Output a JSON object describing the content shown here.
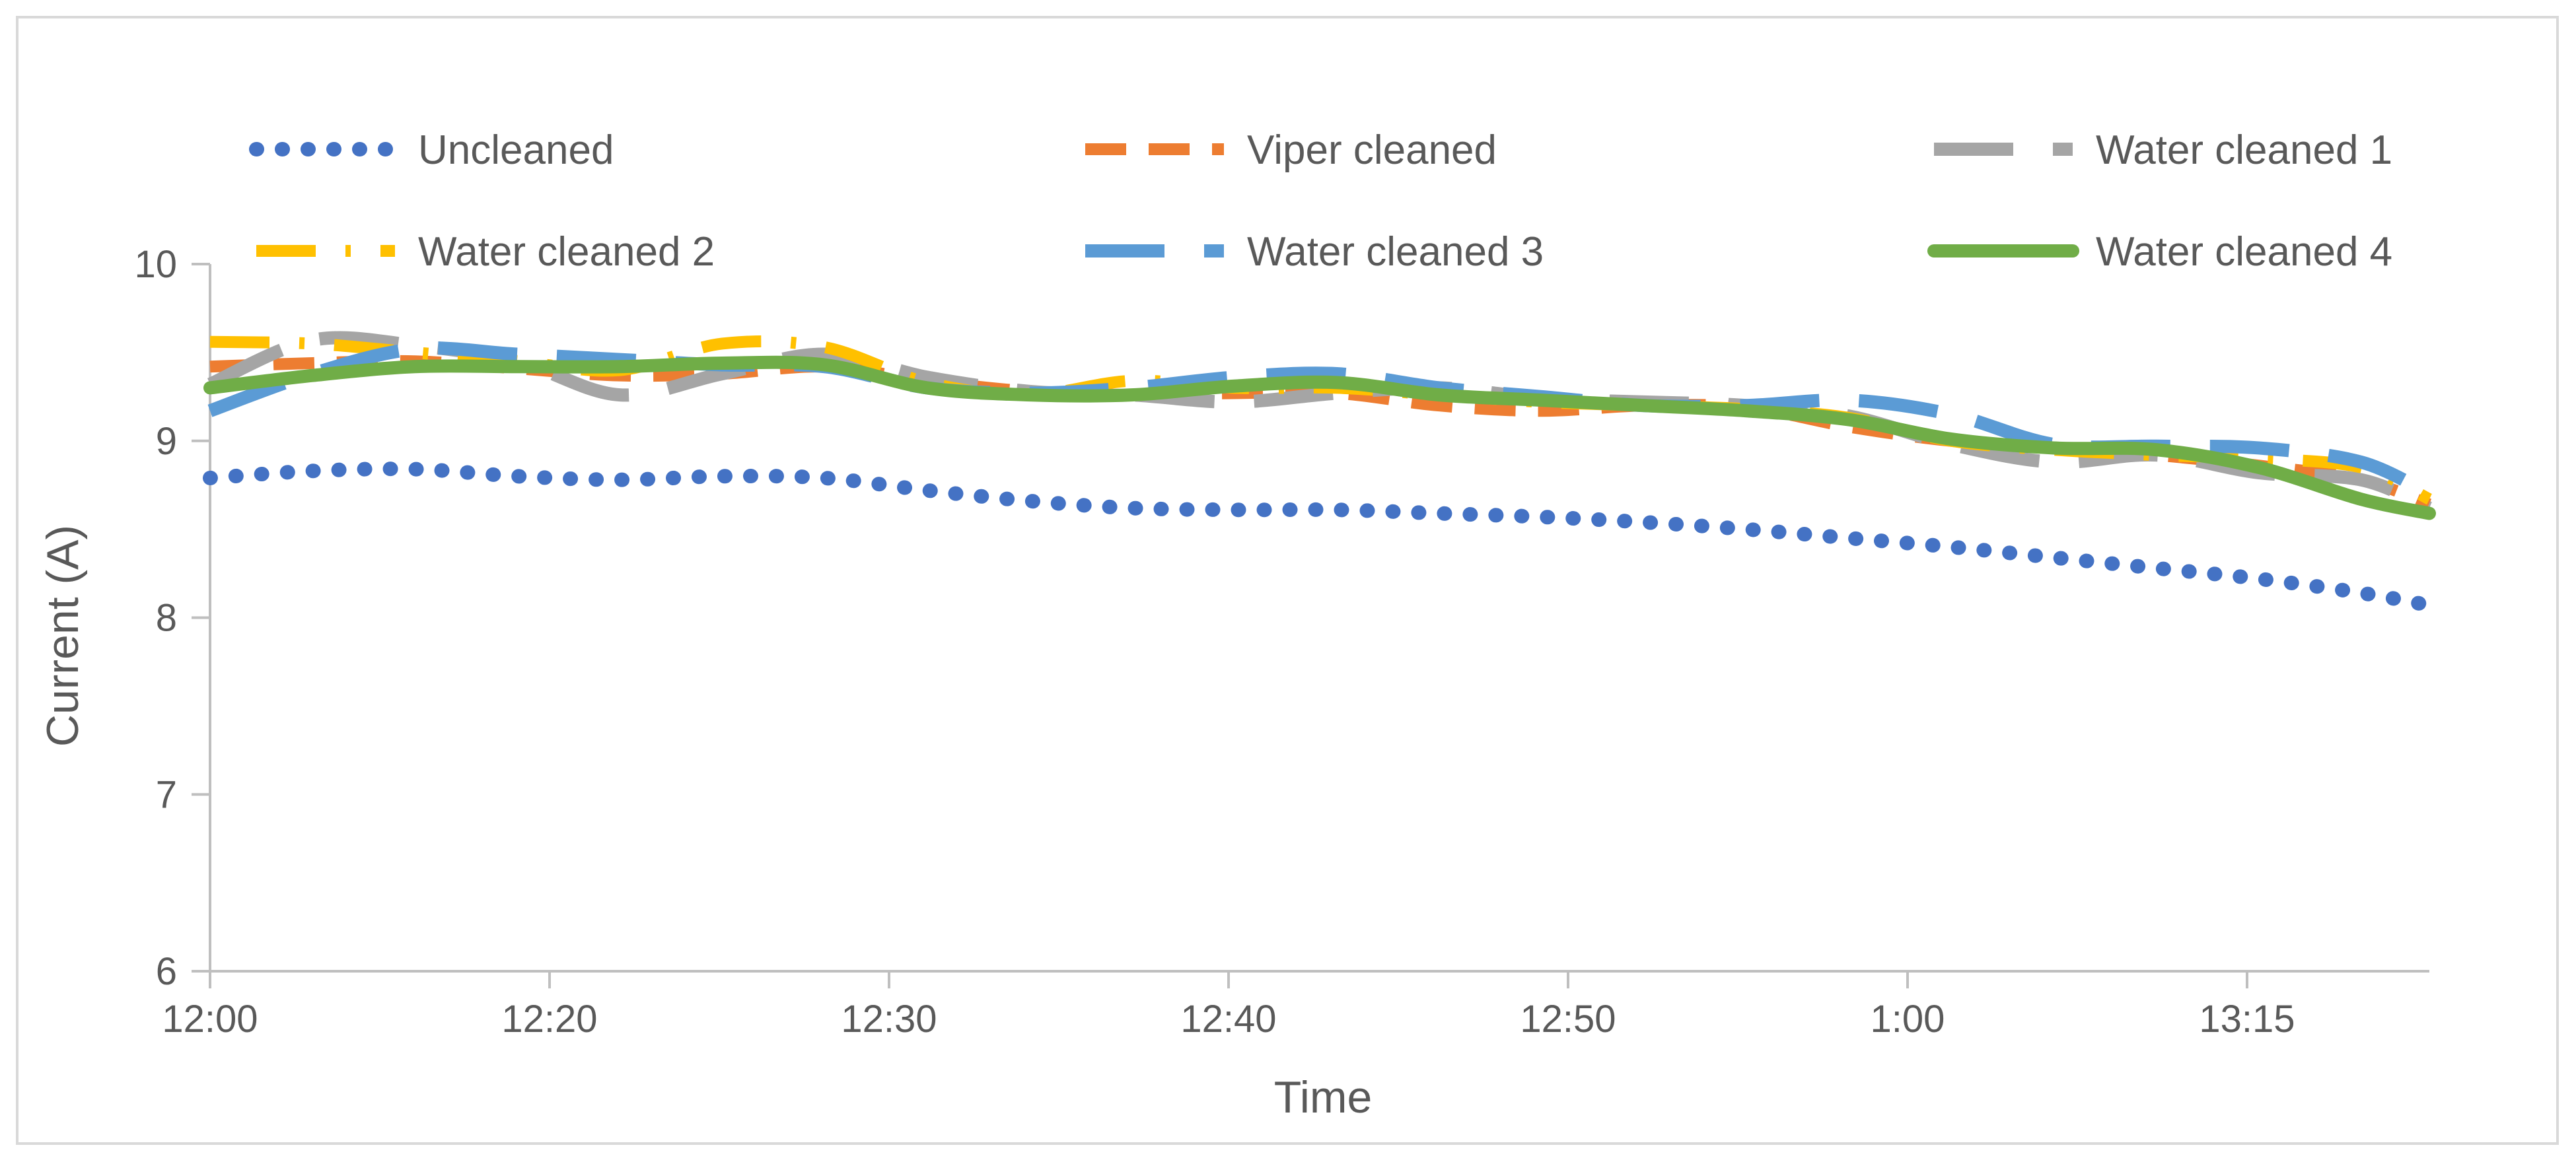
{
  "chart_data": {
    "type": "line",
    "title": "",
    "xlabel": "Time",
    "ylabel": "Current (A)",
    "ylim": [
      6,
      10
    ],
    "yticks": [
      6,
      7,
      8,
      9,
      10
    ],
    "grid": false,
    "legend_position": "top",
    "xlim": [
      0,
      65
    ],
    "x_tick_labels": [
      "12:00",
      "12:20",
      "12:30",
      "12:40",
      "12:50",
      "1:00",
      "13:15"
    ],
    "x": [
      0,
      3,
      6,
      9,
      12,
      15,
      18,
      21,
      24,
      27,
      30,
      33,
      36,
      39,
      42,
      45,
      48,
      51,
      54,
      57,
      60,
      63,
      65
    ],
    "series": [
      {
        "name": "Uncleaned",
        "color": "#4472c4",
        "style": "dotted",
        "values": [
          8.79,
          8.83,
          8.84,
          8.8,
          8.78,
          8.8,
          8.79,
          8.72,
          8.66,
          8.62,
          8.61,
          8.61,
          8.59,
          8.57,
          8.54,
          8.5,
          8.45,
          8.4,
          8.34,
          8.28,
          8.22,
          8.14,
          8.07
        ]
      },
      {
        "name": "Viper cleaned",
        "color": "#ed7d31",
        "style": "dashed",
        "values": [
          9.42,
          9.44,
          9.45,
          9.41,
          9.37,
          9.38,
          9.42,
          9.34,
          9.28,
          9.26,
          9.27,
          9.27,
          9.2,
          9.17,
          9.2,
          9.19,
          9.08,
          9.0,
          8.96,
          8.92,
          8.86,
          8.78,
          8.64
        ]
      },
      {
        "name": "Water cleaned 1",
        "color": "#a5a5a5",
        "style": "long-dash",
        "values": [
          9.32,
          9.57,
          9.54,
          9.45,
          9.26,
          9.38,
          9.49,
          9.36,
          9.28,
          9.26,
          9.22,
          9.27,
          9.3,
          9.24,
          9.22,
          9.2,
          9.14,
          8.98,
          8.88,
          8.92,
          8.82,
          8.78,
          8.62
        ]
      },
      {
        "name": "Water cleaned 2",
        "color": "#ffc000",
        "style": "dash-dot",
        "values": [
          9.56,
          9.55,
          9.5,
          9.45,
          9.4,
          9.55,
          9.53,
          9.33,
          9.26,
          9.34,
          9.3,
          9.3,
          9.26,
          9.22,
          9.2,
          9.18,
          9.13,
          9.0,
          8.95,
          8.92,
          8.9,
          8.85,
          8.67
        ]
      },
      {
        "name": "Water cleaned 3",
        "color": "#5b9bd5",
        "style": "long-dash",
        "values": [
          9.17,
          9.38,
          9.52,
          9.49,
          9.46,
          9.43,
          9.42,
          9.3,
          9.27,
          9.3,
          9.36,
          9.38,
          9.3,
          9.25,
          9.2,
          9.2,
          9.23,
          9.15,
          8.98,
          8.97,
          8.96,
          8.88,
          8.7
        ]
      },
      {
        "name": "Water cleaned 4",
        "color": "#70ad47",
        "style": "solid",
        "values": [
          9.3,
          9.37,
          9.42,
          9.42,
          9.42,
          9.44,
          9.43,
          9.3,
          9.26,
          9.26,
          9.31,
          9.33,
          9.26,
          9.23,
          9.2,
          9.17,
          9.12,
          9.01,
          8.96,
          8.95,
          8.85,
          8.67,
          8.59
        ]
      }
    ]
  }
}
